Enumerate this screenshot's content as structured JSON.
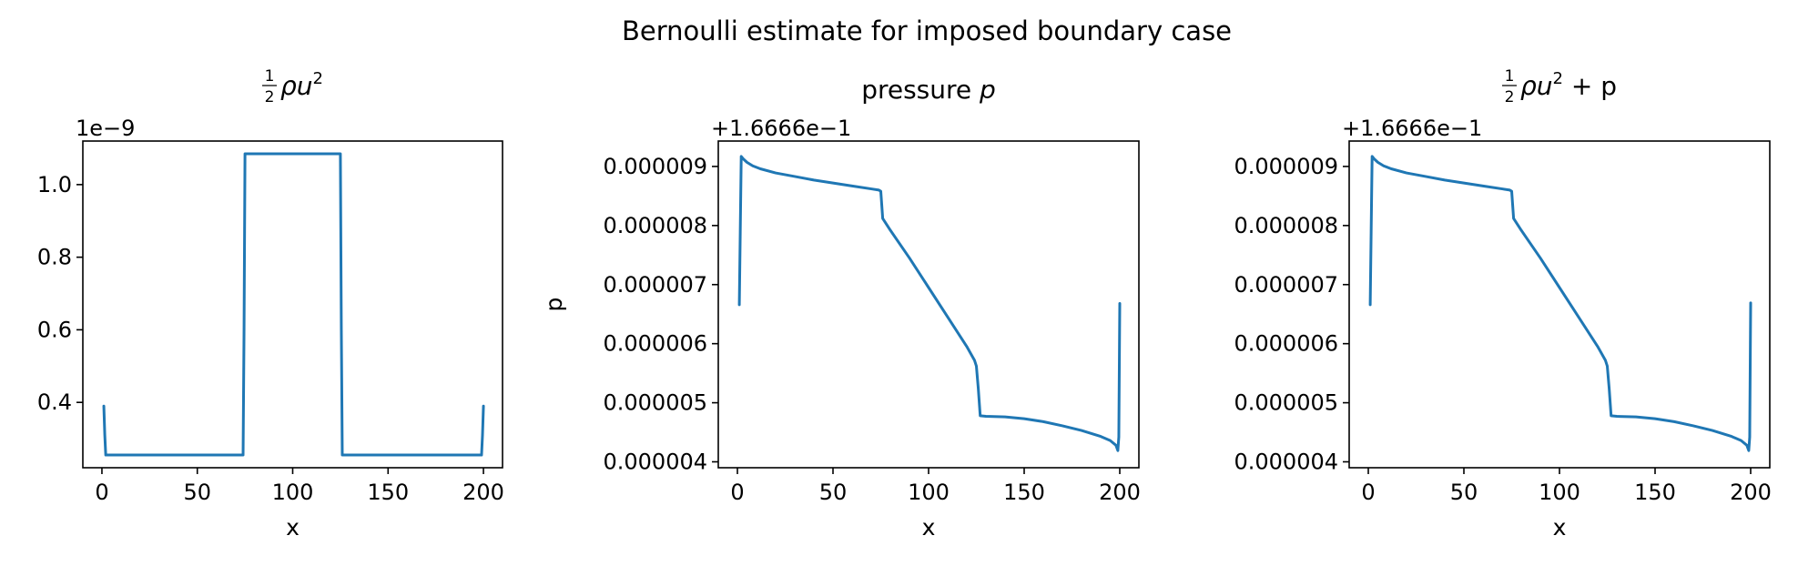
{
  "figure": {
    "suptitle": "Bernoulli estimate for imposed boundary case",
    "line_color": "#1f77b4"
  },
  "chart_data": [
    {
      "type": "line",
      "title_parts": {
        "frac_num": "1",
        "frac_den": "2",
        "body": "ρu",
        "sup": "2",
        "suffix": ""
      },
      "xlabel": "x",
      "ylabel": "",
      "offset_text": "1e−9",
      "xlim": [
        -10,
        210
      ],
      "ylim": [
        0.22,
        1.12
      ],
      "xticks": [
        0,
        50,
        100,
        150,
        200
      ],
      "xtick_labels": [
        "0",
        "50",
        "100",
        "150",
        "200"
      ],
      "yticks": [
        0.4,
        0.6,
        0.8,
        1.0
      ],
      "ytick_labels": [
        "0.4",
        "0.6",
        "0.8",
        "1.0"
      ],
      "x": [
        1,
        1.5,
        2,
        50,
        74,
        74.5,
        75,
        76,
        100,
        124,
        125,
        125.5,
        126,
        150,
        198,
        199,
        199.5,
        200
      ],
      "y": [
        0.39,
        0.31,
        0.255,
        0.255,
        0.255,
        0.6,
        1.085,
        1.085,
        1.085,
        1.085,
        1.085,
        0.6,
        0.255,
        0.255,
        0.255,
        0.255,
        0.31,
        0.39
      ]
    },
    {
      "type": "line",
      "title_parts": {
        "prefix": "pressure ",
        "var": "p"
      },
      "xlabel": "x",
      "ylabel": "p",
      "offset_text": "+1.6666e−1",
      "xlim": [
        -10,
        210
      ],
      "ylim": [
        3.9e-06,
        9.43e-06
      ],
      "xticks": [
        0,
        50,
        100,
        150,
        200
      ],
      "xtick_labels": [
        "0",
        "50",
        "100",
        "150",
        "200"
      ],
      "yticks": [
        4e-06,
        5e-06,
        6e-06,
        7e-06,
        8e-06,
        9e-06
      ],
      "ytick_labels": [
        "0.000004",
        "0.000005",
        "0.000006",
        "0.000007",
        "0.000008",
        "0.000009"
      ],
      "x": [
        1,
        2,
        3,
        5,
        8,
        12,
        20,
        30,
        40,
        50,
        60,
        70,
        74,
        75,
        76,
        80,
        90,
        100,
        110,
        120,
        124,
        125,
        126,
        127,
        130,
        140,
        150,
        160,
        170,
        180,
        190,
        195,
        198,
        199,
        199.5,
        200
      ],
      "y": [
        6.66e-06,
        9.17e-06,
        9.13e-06,
        9.07e-06,
        9.01e-06,
        8.96e-06,
        8.89e-06,
        8.83e-06,
        8.77e-06,
        8.72e-06,
        8.67e-06,
        8.62e-06,
        8.6e-06,
        8.58e-06,
        8.12e-06,
        7.92e-06,
        7.45e-06,
        6.95e-06,
        6.45e-06,
        5.95e-06,
        5.72e-06,
        5.62e-06,
        5.24e-06,
        4.78e-06,
        4.77e-06,
        4.76e-06,
        4.73e-06,
        4.68e-06,
        4.61e-06,
        4.53e-06,
        4.43e-06,
        4.36e-06,
        4.28e-06,
        4.19e-06,
        4.42e-06,
        6.68e-06
      ]
    },
    {
      "type": "line",
      "title_parts": {
        "frac_num": "1",
        "frac_den": "2",
        "body": "ρu",
        "sup": "2",
        "suffix": " + p"
      },
      "xlabel": "x",
      "ylabel": "",
      "offset_text": "+1.6666e−1",
      "xlim": [
        -10,
        210
      ],
      "ylim": [
        3.9e-06,
        9.43e-06
      ],
      "xticks": [
        0,
        50,
        100,
        150,
        200
      ],
      "xtick_labels": [
        "0",
        "50",
        "100",
        "150",
        "200"
      ],
      "yticks": [
        4e-06,
        5e-06,
        6e-06,
        7e-06,
        8e-06,
        9e-06
      ],
      "ytick_labels": [
        "0.000004",
        "0.000005",
        "0.000006",
        "0.000007",
        "0.000008",
        "0.000009"
      ],
      "x": [
        1,
        2,
        3,
        5,
        8,
        12,
        20,
        30,
        40,
        50,
        60,
        70,
        74,
        75,
        76,
        80,
        90,
        100,
        110,
        120,
        124,
        125,
        126,
        127,
        130,
        140,
        150,
        160,
        170,
        180,
        190,
        195,
        198,
        199,
        199.5,
        200
      ],
      "y": [
        6.66e-06,
        9.17e-06,
        9.13e-06,
        9.07e-06,
        9.01e-06,
        8.96e-06,
        8.89e-06,
        8.83e-06,
        8.77e-06,
        8.72e-06,
        8.67e-06,
        8.62e-06,
        8.6e-06,
        8.58e-06,
        8.12e-06,
        7.92e-06,
        7.45e-06,
        6.95e-06,
        6.45e-06,
        5.95e-06,
        5.72e-06,
        5.62e-06,
        5.24e-06,
        4.78e-06,
        4.77e-06,
        4.76e-06,
        4.73e-06,
        4.68e-06,
        4.61e-06,
        4.53e-06,
        4.43e-06,
        4.36e-06,
        4.28e-06,
        4.19e-06,
        4.42e-06,
        6.69e-06
      ]
    }
  ]
}
